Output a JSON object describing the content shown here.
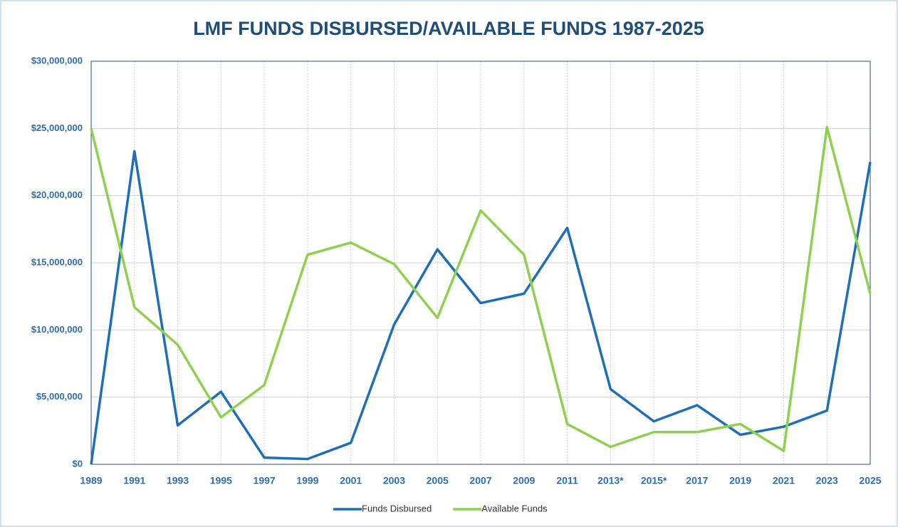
{
  "chart_data": {
    "type": "line",
    "title": "LMF FUNDS DISBURSED/AVAILABLE FUNDS 1987-2025",
    "categories": [
      "1989",
      "1991",
      "1993",
      "1995",
      "1997",
      "1999",
      "2001",
      "2003",
      "2005",
      "2007",
      "2009",
      "2011",
      "2013*",
      "2015*",
      "2017",
      "2019",
      "2021",
      "2023",
      "2025"
    ],
    "series": [
      {
        "name": "Funds Disbursed",
        "color": "#1f6fb8",
        "values": [
          0,
          23300000,
          2900000,
          5400000,
          500000,
          400000,
          1600000,
          10400000,
          16000000,
          12000000,
          12700000,
          17600000,
          5600000,
          3200000,
          4400000,
          2200000,
          2800000,
          4000000,
          22500000
        ]
      },
      {
        "name": "Available Funds",
        "color": "#8fd14f",
        "values": [
          25000000,
          11700000,
          8900000,
          3500000,
          5900000,
          15600000,
          16500000,
          14900000,
          10900000,
          18900000,
          15600000,
          3000000,
          1300000,
          2400000,
          2400000,
          3000000,
          1000000,
          25100000,
          12700000
        ]
      }
    ],
    "ylim": [
      0,
      30000000
    ],
    "yticks": [
      {
        "value": 0,
        "label": "$0"
      },
      {
        "value": 5000000,
        "label": "$5,000,000"
      },
      {
        "value": 10000000,
        "label": "$10,000,000"
      },
      {
        "value": 15000000,
        "label": "$15,000,000"
      },
      {
        "value": 20000000,
        "label": "$20,000,000"
      },
      {
        "value": 25000000,
        "label": "$25,000,000"
      },
      {
        "value": 30000000,
        "label": "$30,000,000"
      }
    ],
    "grid": true,
    "legend": "bottom"
  }
}
